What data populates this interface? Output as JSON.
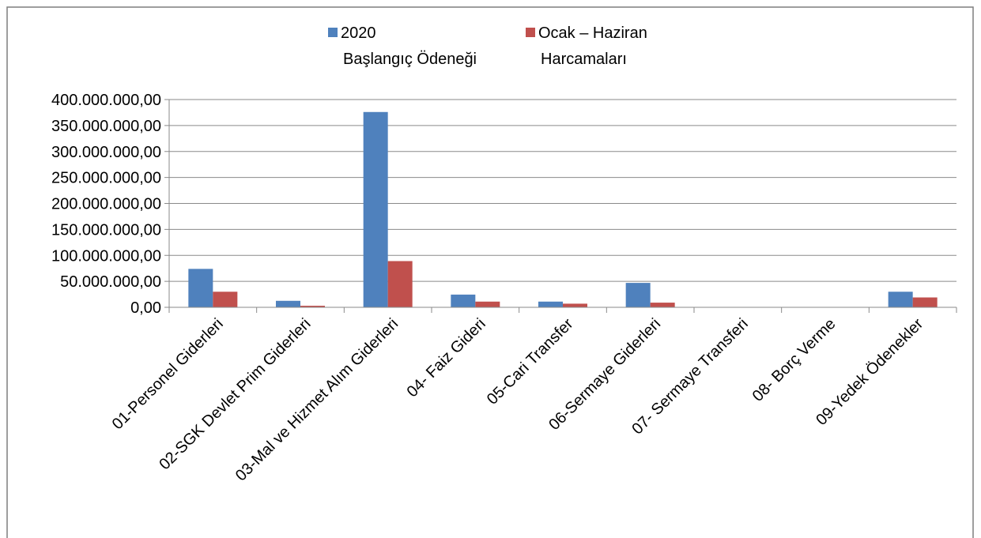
{
  "chart_data": {
    "type": "bar",
    "title": "",
    "xlabel": "",
    "ylabel": "",
    "categories": [
      "01-Personel Giderleri",
      "02-SGK Devlet Prim Giderleri",
      "03-Mal ve Hizmet Alım Giderleri",
      "04- Faiz Gideri",
      "05-Cari Transfer",
      "06-Sermaye Giderleri",
      "07- Sermaye Transferi",
      "08- Borç Verme",
      "09-Yedek Ödenekler"
    ],
    "series": [
      {
        "name_lines": [
          "2020",
          "Başlangıç Ödeneği"
        ],
        "color": "#4F81BD",
        "values": [
          74000000,
          12500000,
          376000000,
          24500000,
          11000000,
          47000000,
          0,
          0,
          30000000
        ]
      },
      {
        "name_lines": [
          "Ocak – Haziran",
          "Harcamaları"
        ],
        "color": "#C0504D",
        "values": [
          30000000,
          3000000,
          89000000,
          11000000,
          7000000,
          9000000,
          0,
          0,
          19000000
        ]
      }
    ],
    "ylim": [
      0,
      400000000
    ],
    "yticks": [
      0,
      50000000,
      100000000,
      150000000,
      200000000,
      250000000,
      300000000,
      350000000,
      400000000
    ],
    "ytick_labels": [
      "0,00",
      "50.000.000,00",
      "100.000.000,00",
      "150.000.000,00",
      "200.000.000,00",
      "250.000.000,00",
      "300.000.000,00",
      "350.000.000,00",
      "400.000.000,00"
    ],
    "grid": true,
    "legend_position": "top"
  }
}
